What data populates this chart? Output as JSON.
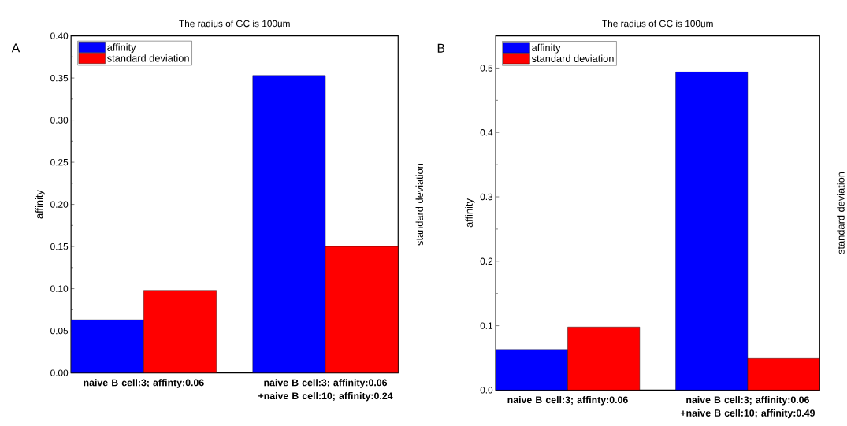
{
  "chart_data": [
    {
      "type": "bar",
      "title": "The radius of GC is 100um",
      "ylabel": "affinity",
      "y2label": "standard deviation",
      "annotations": [
        "A"
      ],
      "categories": [
        "naive B cell:3; affinty:0.06",
        "naive B cell:3; affinity:0.06 +naive B cell:10; affinity:0.24"
      ],
      "series": [
        {
          "name": "affinity",
          "color": "#0000ff",
          "values": [
            0.063,
            0.353
          ]
        },
        {
          "name": "standard deviation",
          "color": "#ff0000",
          "values": [
            0.098,
            0.15
          ]
        }
      ],
      "ylim": [
        0,
        0.4
      ],
      "yticks": [
        {
          "value": 0,
          "label": "0.00"
        },
        0.05,
        {
          "value": 0.1,
          "label": "0.10"
        },
        0.15,
        {
          "value": 0.2,
          "label": "0.20"
        },
        0.25,
        {
          "value": 0.3,
          "label": "0.30"
        },
        0.35,
        {
          "value": 0.4,
          "label": "0.40"
        }
      ],
      "legend": "top left"
    },
    {
      "type": "bar",
      "title": "The radius of GC is 100um",
      "ylabel": "affinity",
      "y2label": "standard deviation",
      "annotations": [
        "B"
      ],
      "categories": [
        "naive B cell:3; affinty:0.06",
        "naive B cell:3; affinity:0.06 +naive B cell:10; affinity:0.49"
      ],
      "series": [
        {
          "name": "affinity",
          "color": "#0000ff",
          "values": [
            0.063,
            0.494
          ]
        },
        {
          "name": "standard deviation",
          "color": "#ff0000",
          "values": [
            0.098,
            0.049
          ]
        }
      ],
      "ylim": [
        0,
        0.55
      ],
      "yticks": [
        {
          "value": 0,
          "label": "0.0"
        },
        0.1,
        0.2,
        0.3,
        0.4,
        0.5
      ],
      "legend": "top left"
    }
  ]
}
